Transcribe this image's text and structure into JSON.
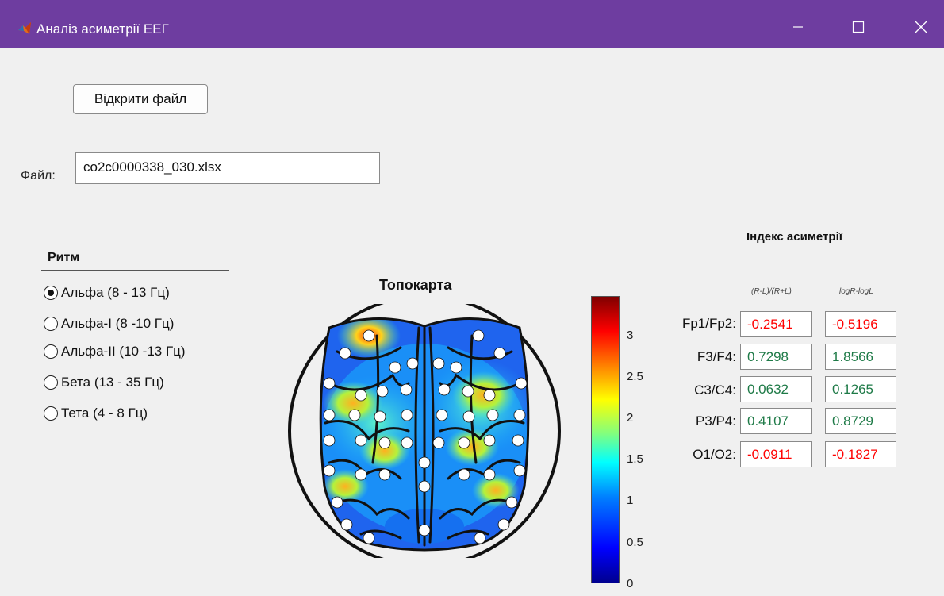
{
  "window": {
    "title": "Аналіз асиметрії ЕЕГ",
    "accent_color": "#6e3da0"
  },
  "open_button": {
    "label": "Відкрити файл"
  },
  "file": {
    "label": "Файл:",
    "value": "co2c0000338_030.xlsx"
  },
  "rhythm": {
    "title": "Ритм",
    "options": [
      {
        "label": "Альфа (8 - 13 Гц)",
        "selected": true
      },
      {
        "label": "Альфа-I (8 -10 Гц)",
        "selected": false
      },
      {
        "label": "Альфа-II (10 -13 Гц)",
        "selected": false
      },
      {
        "label": "Бета (13 - 35 Гц)",
        "selected": false
      },
      {
        "label": "Тета (4 - 8 Гц)",
        "selected": false
      }
    ]
  },
  "topomap": {
    "title": "Топокарта",
    "colorbar": {
      "min": 0,
      "max": 3.4,
      "ticks": [
        "3",
        "2.5",
        "2",
        "1.5",
        "1",
        "0.5",
        "0"
      ]
    }
  },
  "asymmetry": {
    "title": "Індекс асиметрії",
    "col1_header": "(R-L)/(R+L)",
    "col2_header": "logR-logL",
    "negative_color": "#ff0000",
    "positive_color": "#1e7a47",
    "rows": [
      {
        "pair": "Fp1/Fp2:",
        "ratio": "-0.2541",
        "log": "-0.5196"
      },
      {
        "pair": "F3/F4:",
        "ratio": "0.7298",
        "log": "1.8566"
      },
      {
        "pair": "C3/C4:",
        "ratio": "0.0632",
        "log": "0.1265"
      },
      {
        "pair": "P3/P4:",
        "ratio": "0.4107",
        "log": "0.8729"
      },
      {
        "pair": "O1/O2:",
        "ratio": "-0.0911",
        "log": "-0.1827"
      }
    ]
  }
}
